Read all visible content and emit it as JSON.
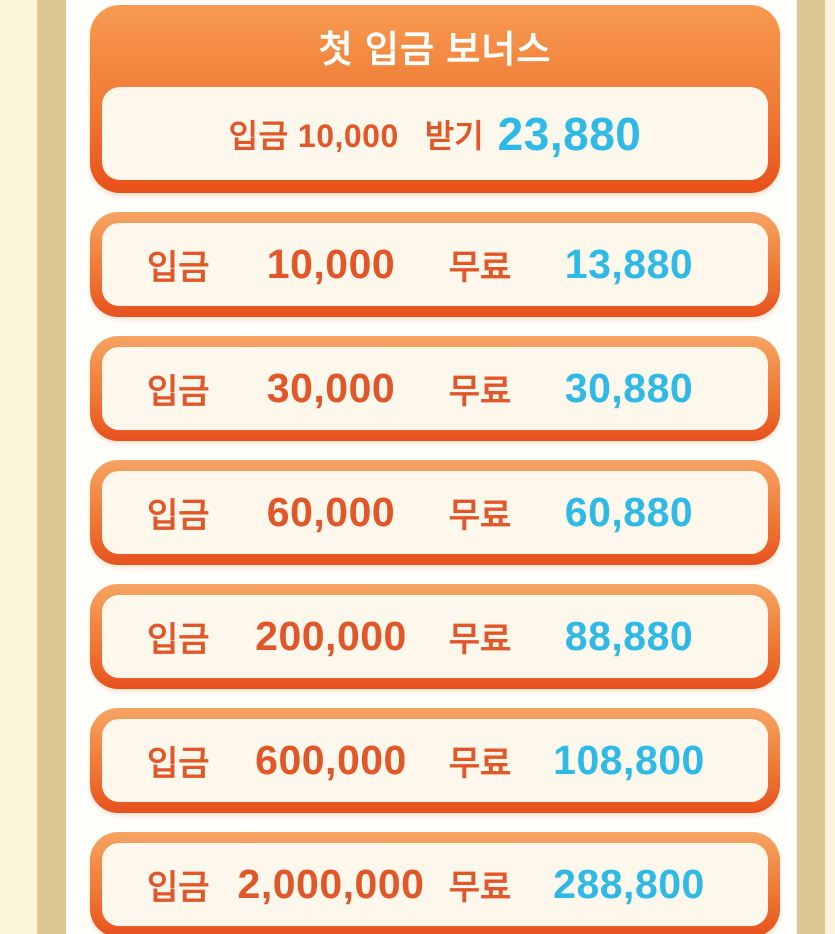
{
  "colors": {
    "edge_cream": "#FBF4DB",
    "edge_tan": "#DFC795",
    "card_gradient_top": "#F6A463",
    "card_gradient_bottom": "#E8511E",
    "panel_cream": "#FDF8EB",
    "text_orange": "#E2572A",
    "text_cyan": "#2FB9E6",
    "title_white": "#FFFFFF"
  },
  "header_card": {
    "title": "첫 입금 보너스",
    "deposit_line": "입금 10,000",
    "claim_label": "받기",
    "bonus_value": "23,880"
  },
  "tiers": [
    {
      "deposit_label": "입금",
      "deposit": "10,000",
      "free_label": "무료",
      "bonus": "13,880"
    },
    {
      "deposit_label": "입금",
      "deposit": "30,000",
      "free_label": "무료",
      "bonus": "30,880"
    },
    {
      "deposit_label": "입금",
      "deposit": "60,000",
      "free_label": "무료",
      "bonus": "60,880"
    },
    {
      "deposit_label": "입금",
      "deposit": "200,000",
      "free_label": "무료",
      "bonus": "88,880"
    },
    {
      "deposit_label": "입금",
      "deposit": "600,000",
      "free_label": "무료",
      "bonus": "108,800"
    },
    {
      "deposit_label": "입금",
      "deposit": "2,000,000",
      "free_label": "무료",
      "bonus": "288,800"
    }
  ]
}
